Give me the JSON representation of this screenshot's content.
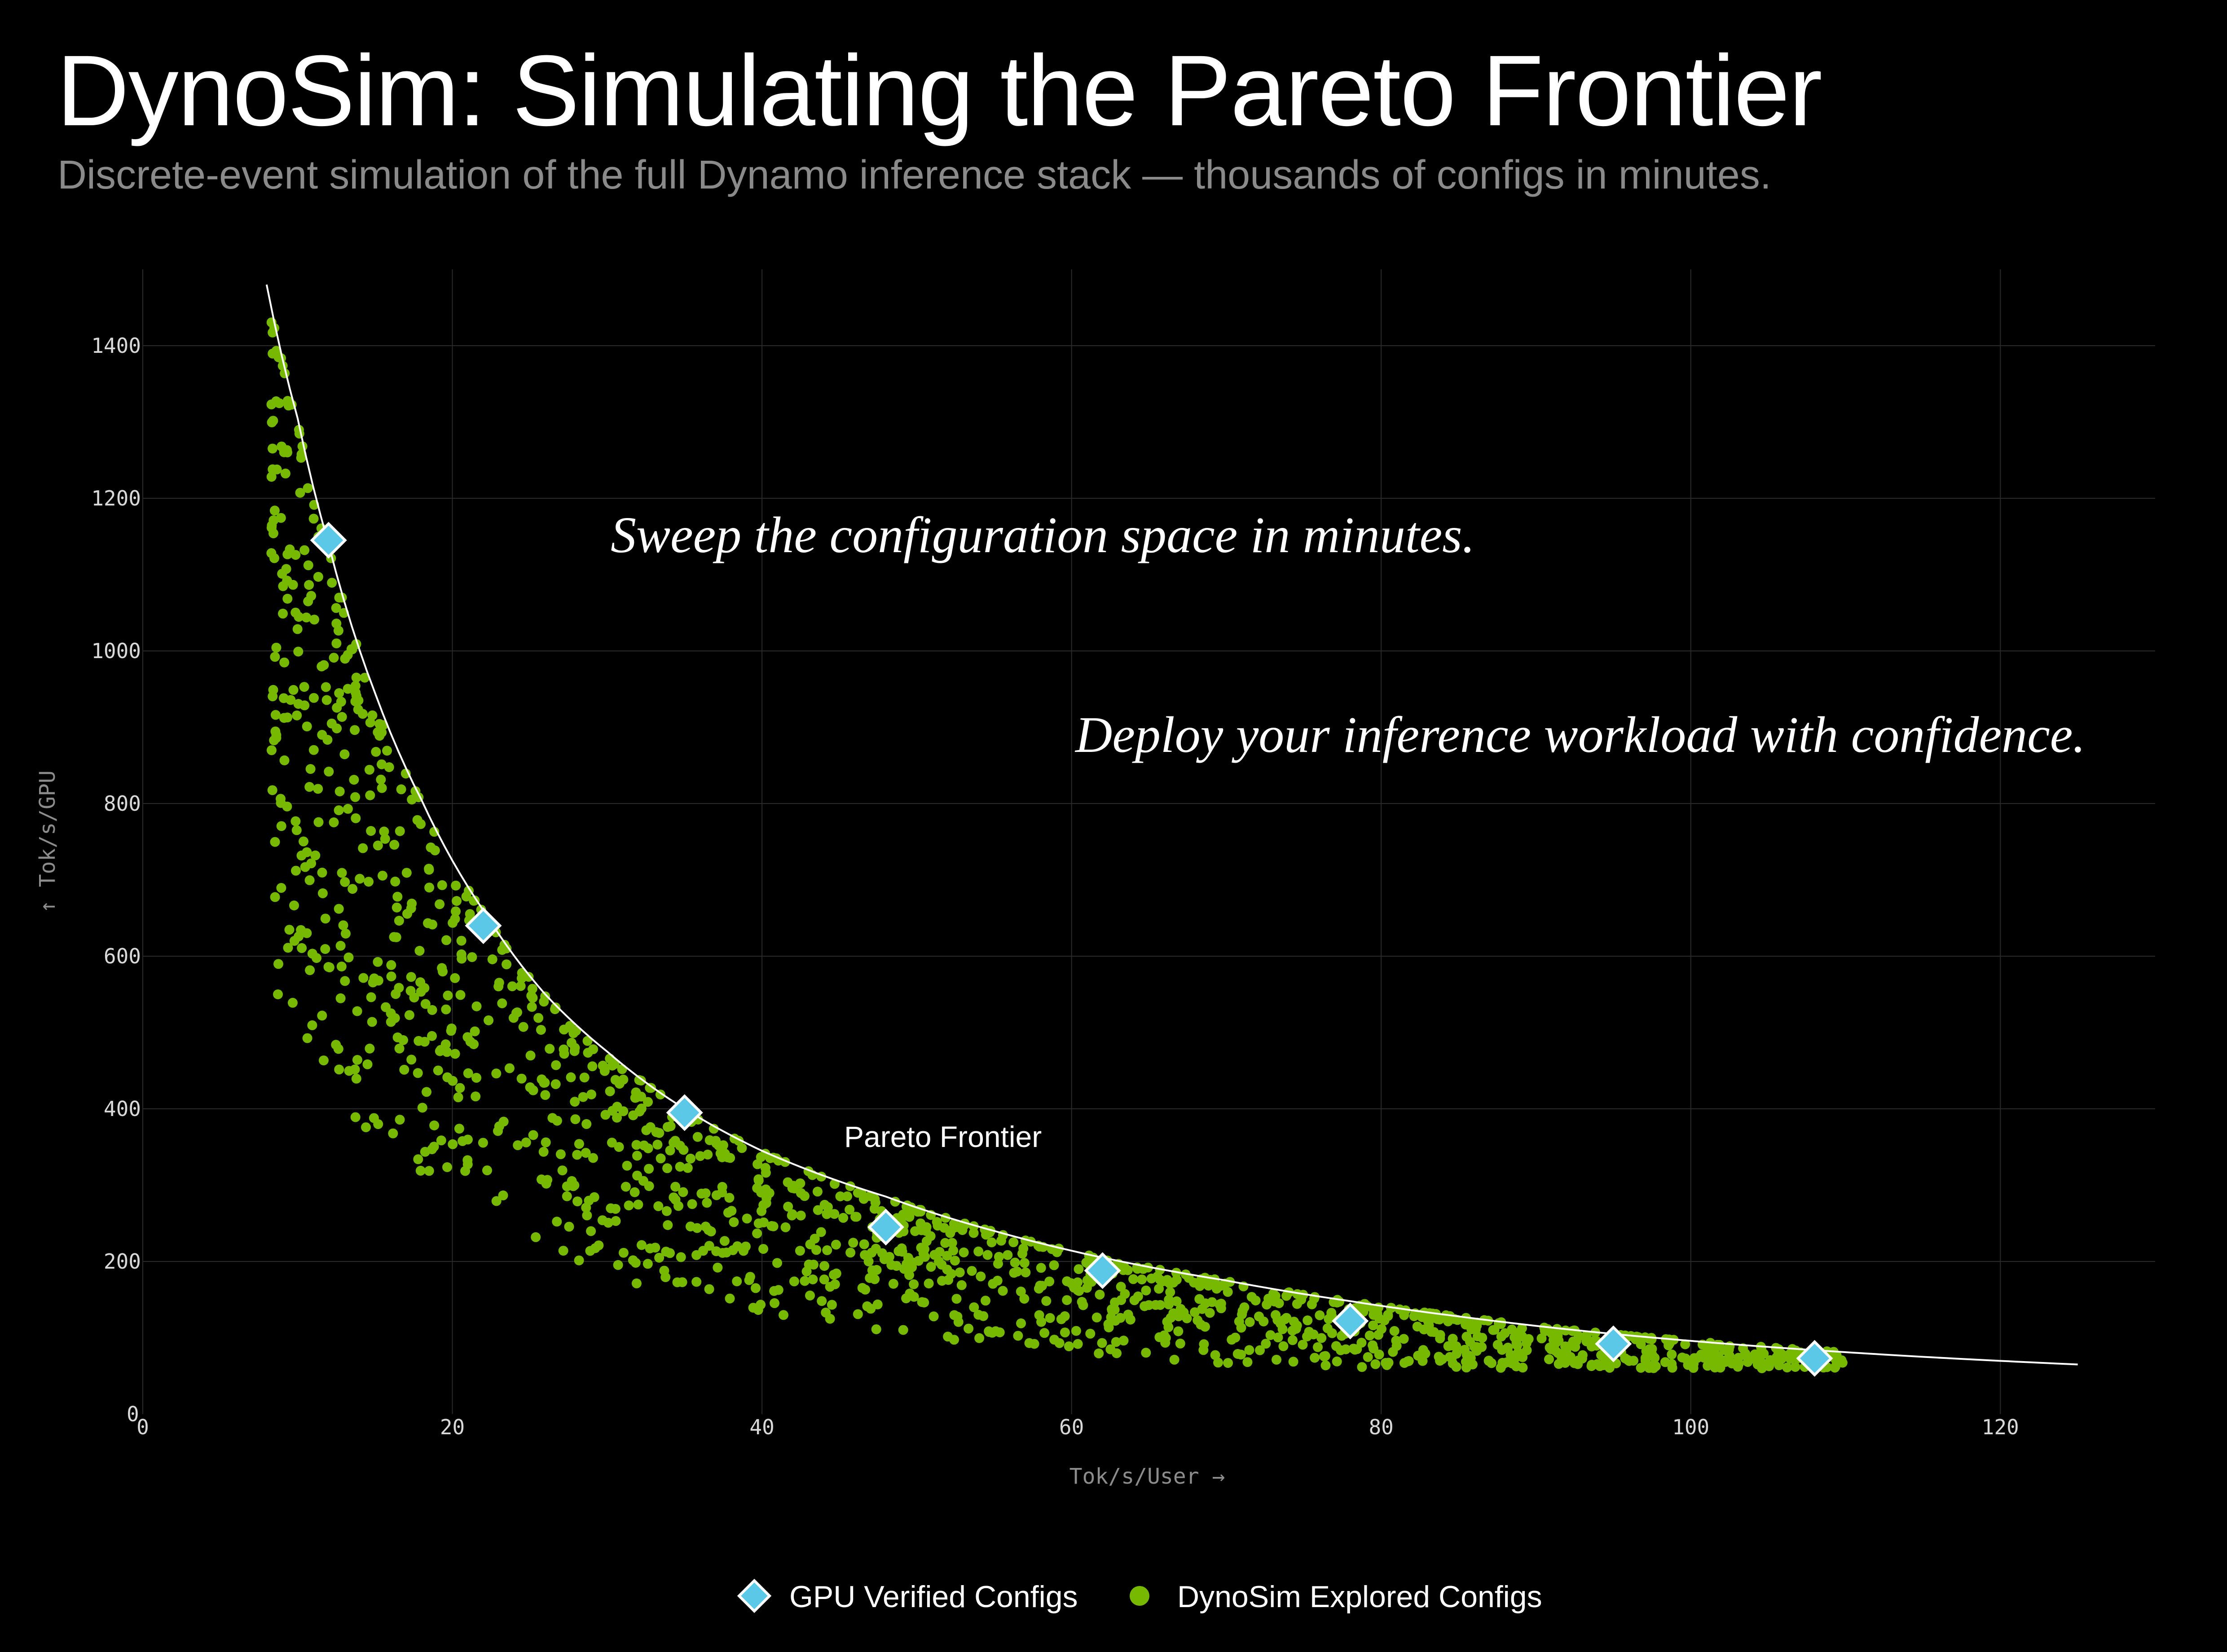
{
  "header": {
    "title": "DynoSim: Simulating the Pareto Frontier",
    "subtitle": "Discrete-event simulation of the full Dynamo inference stack — thousands of configs in minutes."
  },
  "colors": {
    "background": "#000000",
    "explored": "#76b900",
    "verified": "#5bc8e8",
    "frontier": "#ffffff",
    "grid": "#2a2a2a"
  },
  "chart_data": {
    "type": "scatter",
    "xlabel": "Tok/s/User →",
    "ylabel": "↑ Tok/s/GPU",
    "xlim": [
      0,
      130
    ],
    "ylim": [
      0,
      1500
    ],
    "xticks": [
      0,
      20,
      40,
      60,
      80,
      100,
      120
    ],
    "yticks": [
      0,
      200,
      400,
      600,
      800,
      1000,
      1200,
      1400
    ],
    "grid": true,
    "legend_position": "bottom-center",
    "frontier": {
      "name": "Pareto Frontier",
      "x": [
        8,
        10,
        12,
        15,
        18,
        22,
        26,
        30,
        35,
        40,
        48,
        55,
        62,
        70,
        78,
        85,
        95,
        105,
        115,
        125
      ],
      "y": [
        1480,
        1305,
        1140,
        945,
        805,
        660,
        550,
        475,
        400,
        345,
        285,
        240,
        205,
        175,
        148,
        128,
        105,
        88,
        75,
        65
      ]
    },
    "series": [
      {
        "name": "GPU Verified Configs",
        "marker": "diamond",
        "x": [
          12,
          22,
          35,
          48,
          62,
          78,
          95,
          108
        ],
        "y": [
          1145,
          640,
          395,
          245,
          188,
          122,
          92,
          73
        ]
      },
      {
        "name": "DynoSim Explored Configs",
        "marker": "circle",
        "count": 1500
      }
    ],
    "annotations": [
      "Sweep the configuration space in minutes.",
      "Deploy your inference workload with confidence.",
      "Pareto Frontier"
    ]
  }
}
